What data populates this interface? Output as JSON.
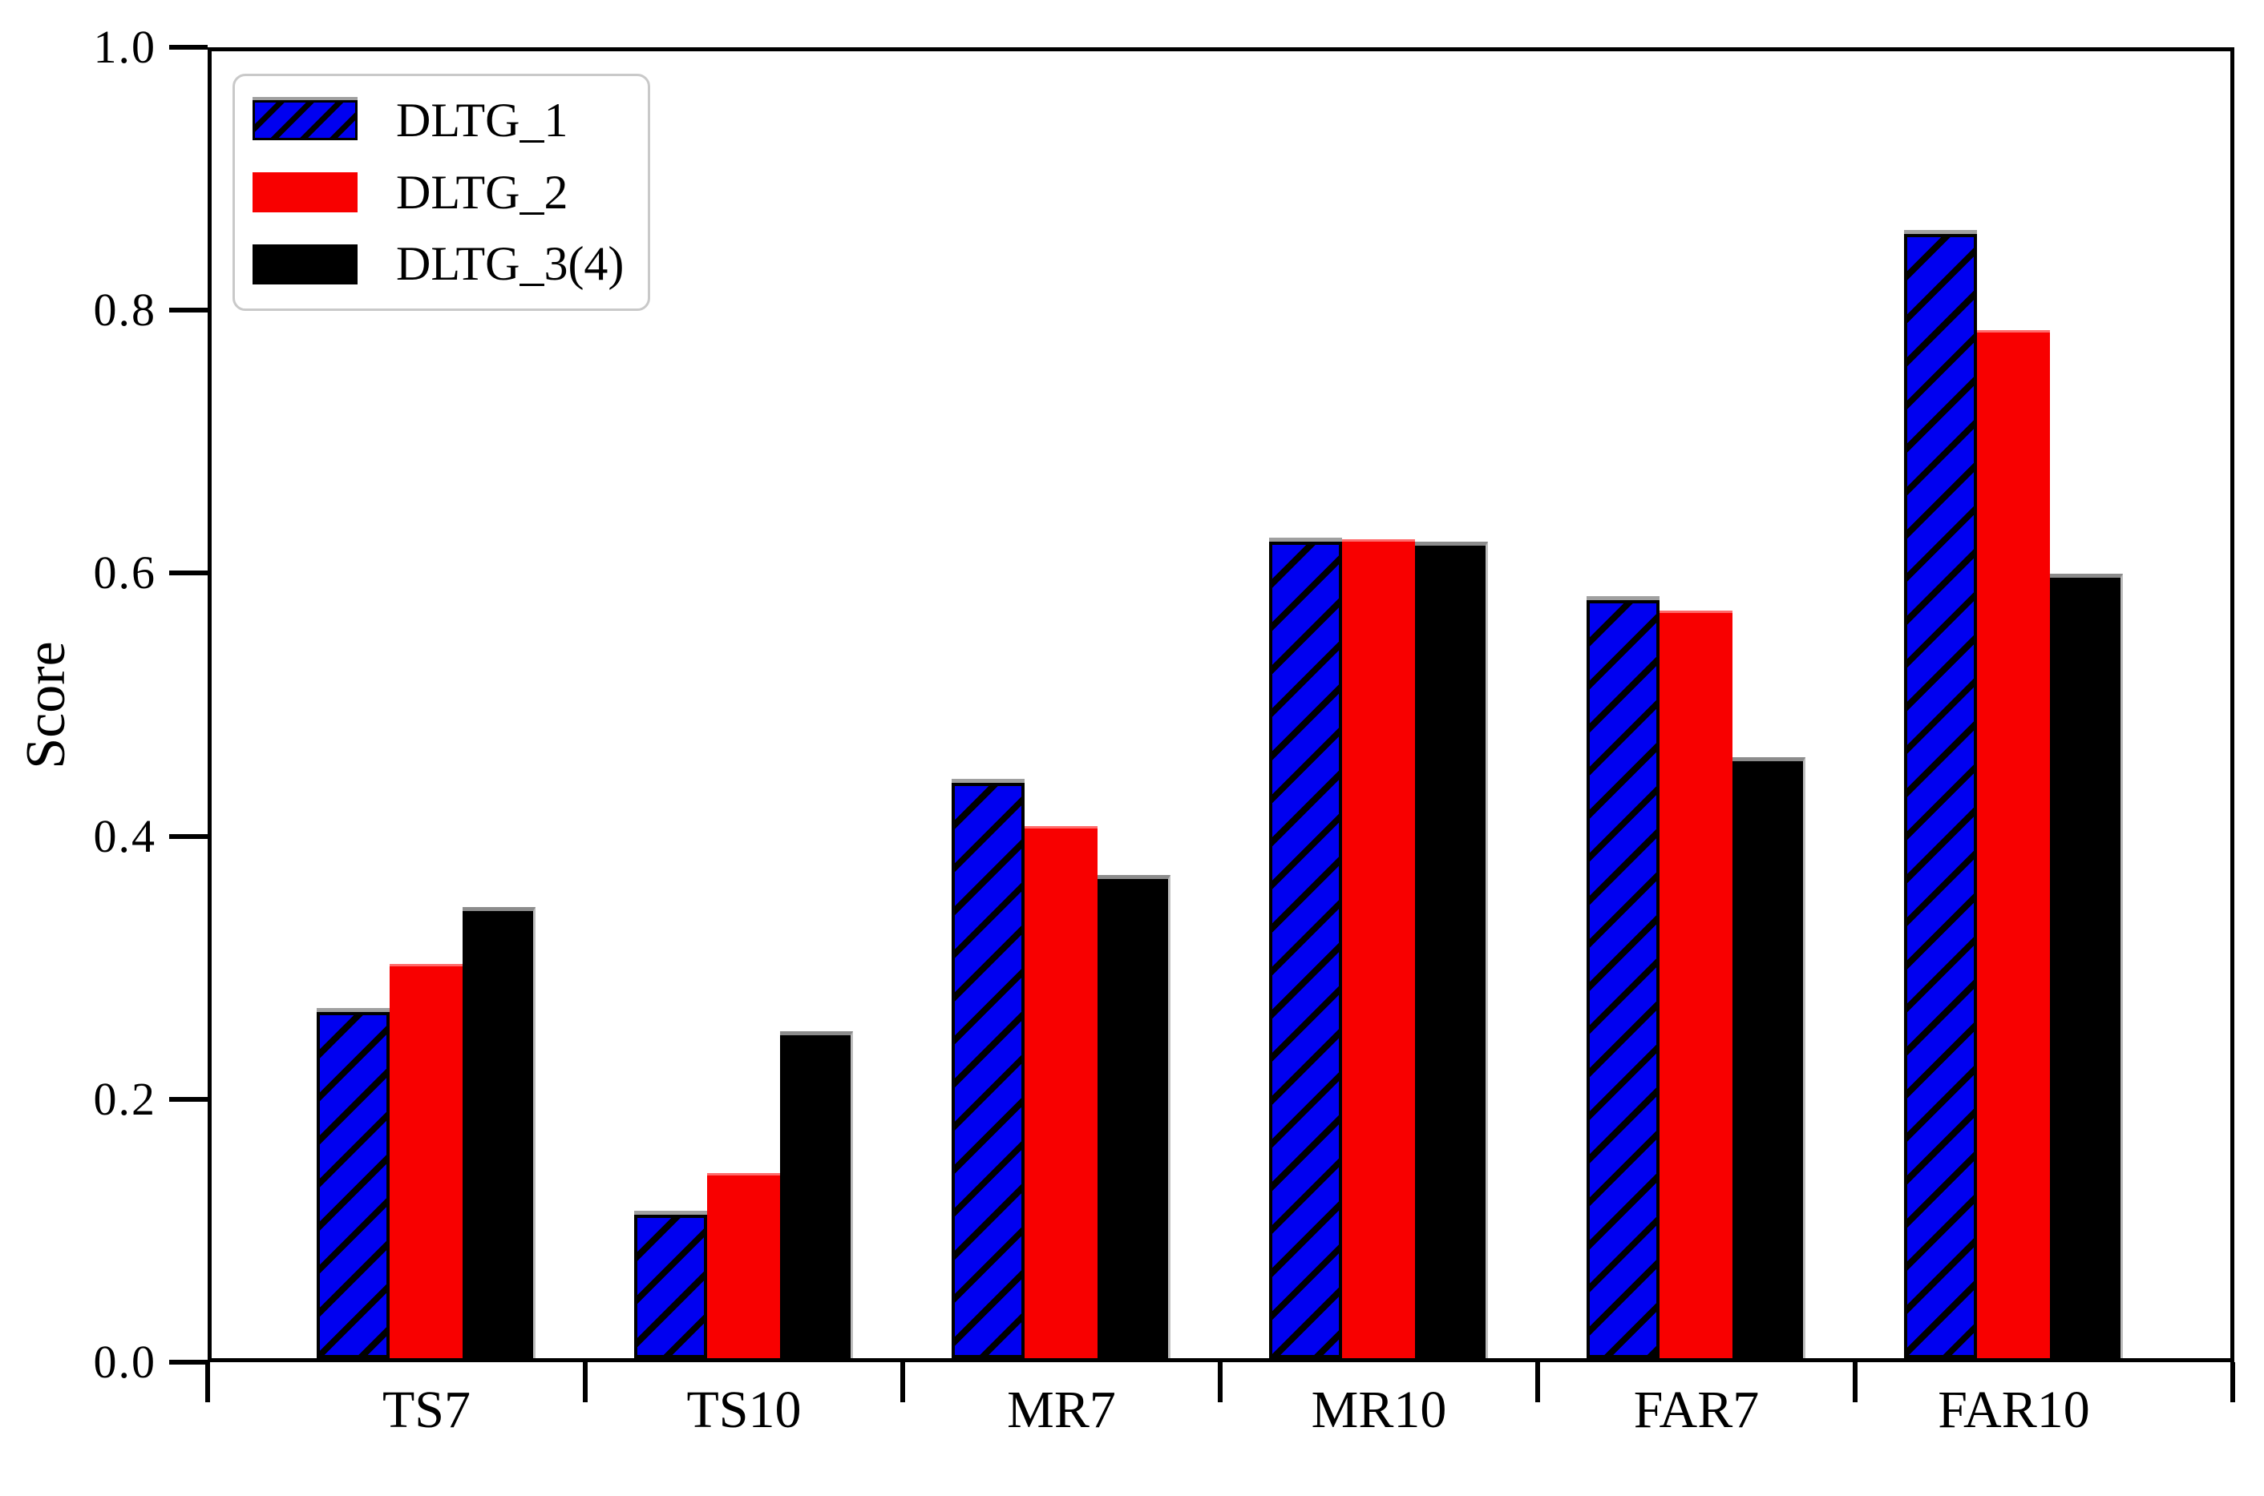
{
  "chart_data": {
    "type": "bar",
    "title": "",
    "xlabel": "",
    "ylabel": "Score",
    "ylim": [
      0.0,
      1.0
    ],
    "grid": false,
    "legend_position": "top-left",
    "yticks": [
      {
        "value": 0.0,
        "label": "0.0"
      },
      {
        "value": 0.2,
        "label": "0.2"
      },
      {
        "value": 0.4,
        "label": "0.4"
      },
      {
        "value": 0.6,
        "label": "0.6"
      },
      {
        "value": 0.8,
        "label": "0.8"
      },
      {
        "value": 1.0,
        "label": "1.0"
      }
    ],
    "categories": [
      "TS7",
      "TS10",
      "MR7",
      "MR10",
      "FAR7",
      "FAR10"
    ],
    "series": [
      {
        "name": "DLTG_1",
        "color": "#0000f0",
        "hatch": "diagonal",
        "values": [
          0.265,
          0.11,
          0.44,
          0.625,
          0.58,
          0.86
        ]
      },
      {
        "name": "DLTG_2",
        "color": "#f80000",
        "hatch": "none",
        "values": [
          0.3,
          0.14,
          0.405,
          0.625,
          0.57,
          0.785
        ]
      },
      {
        "name": "DLTG_3(4)",
        "color": "#000000",
        "hatch": "none",
        "values": [
          0.345,
          0.25,
          0.37,
          0.625,
          0.46,
          0.6
        ]
      }
    ]
  }
}
